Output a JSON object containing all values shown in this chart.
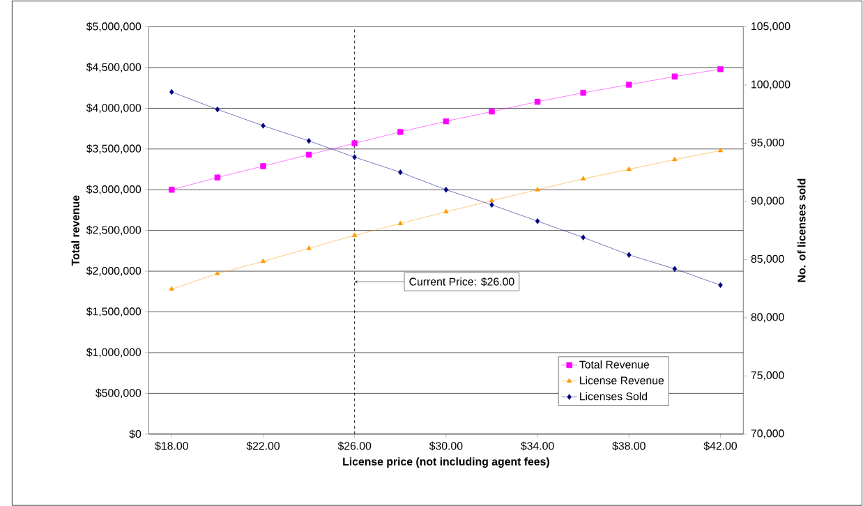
{
  "chart_data": {
    "type": "line",
    "xlabel": "License price (not including agent fees)",
    "ylabel": "Total revenue",
    "y2label": "No. of licenses sold",
    "x": [
      18,
      20,
      22,
      24,
      26,
      28,
      30,
      32,
      34,
      36,
      38,
      40,
      42
    ],
    "xlim": [
      17,
      43
    ],
    "xticks": [
      {
        "value": 18,
        "label": "$18.00"
      },
      {
        "value": 22,
        "label": "$22.00"
      },
      {
        "value": 26,
        "label": "$26.00"
      },
      {
        "value": 30,
        "label": "$30.00"
      },
      {
        "value": 34,
        "label": "$34.00"
      },
      {
        "value": 38,
        "label": "$38.00"
      },
      {
        "value": 42,
        "label": "$42.00"
      }
    ],
    "ylim": [
      0,
      5000000
    ],
    "yticks": [
      {
        "value": 0,
        "label": "$0"
      },
      {
        "value": 500000,
        "label": "$500,000"
      },
      {
        "value": 1000000,
        "label": "$1,000,000"
      },
      {
        "value": 1500000,
        "label": "$1,500,000"
      },
      {
        "value": 2000000,
        "label": "$2,000,000"
      },
      {
        "value": 2500000,
        "label": "$2,500,000"
      },
      {
        "value": 3000000,
        "label": "$3,000,000"
      },
      {
        "value": 3500000,
        "label": "$3,500,000"
      },
      {
        "value": 4000000,
        "label": "$4,000,000"
      },
      {
        "value": 4500000,
        "label": "$4,500,000"
      },
      {
        "value": 5000000,
        "label": "$5,000,000"
      }
    ],
    "y2lim": [
      70000,
      105000
    ],
    "y2ticks": [
      {
        "value": 70000,
        "label": "70,000"
      },
      {
        "value": 75000,
        "label": "75,000"
      },
      {
        "value": 80000,
        "label": "80,000"
      },
      {
        "value": 85000,
        "label": "85,000"
      },
      {
        "value": 90000,
        "label": "90,000"
      },
      {
        "value": 95000,
        "label": "95,000"
      },
      {
        "value": 100000,
        "label": "100,000"
      },
      {
        "value": 105000,
        "label": "105,000"
      }
    ],
    "series": [
      {
        "name": "Total Revenue",
        "color": "#ff00ff",
        "marker": "square",
        "values": [
          3000000,
          3150000,
          3290000,
          3430000,
          3570000,
          3710000,
          3840000,
          3960000,
          4080000,
          4190000,
          4290000,
          4390000,
          4480000
        ]
      },
      {
        "name": "License Revenue",
        "color": "#ff9900",
        "marker": "triangle",
        "values": [
          1780000,
          1970000,
          2120000,
          2280000,
          2440000,
          2585000,
          2730000,
          2865000,
          3000000,
          3135000,
          3250000,
          3370000,
          3480000
        ]
      },
      {
        "name": "Licenses Sold",
        "color": "#000080",
        "marker": "diamond",
        "axis": "y2",
        "values": [
          99400,
          97900,
          96500,
          95200,
          93800,
          92500,
          91000,
          89700,
          88300,
          86900,
          85400,
          84200,
          82800
        ]
      }
    ],
    "ref_lines": [
      {
        "axis": "x",
        "value": 26,
        "line_style": "dashed",
        "color": "#000000"
      }
    ],
    "annotations": [
      {
        "text": "Current Price: $26.00",
        "x": 26,
        "y": 1870000
      }
    ],
    "grid": "y",
    "legend": "bottom right"
  }
}
